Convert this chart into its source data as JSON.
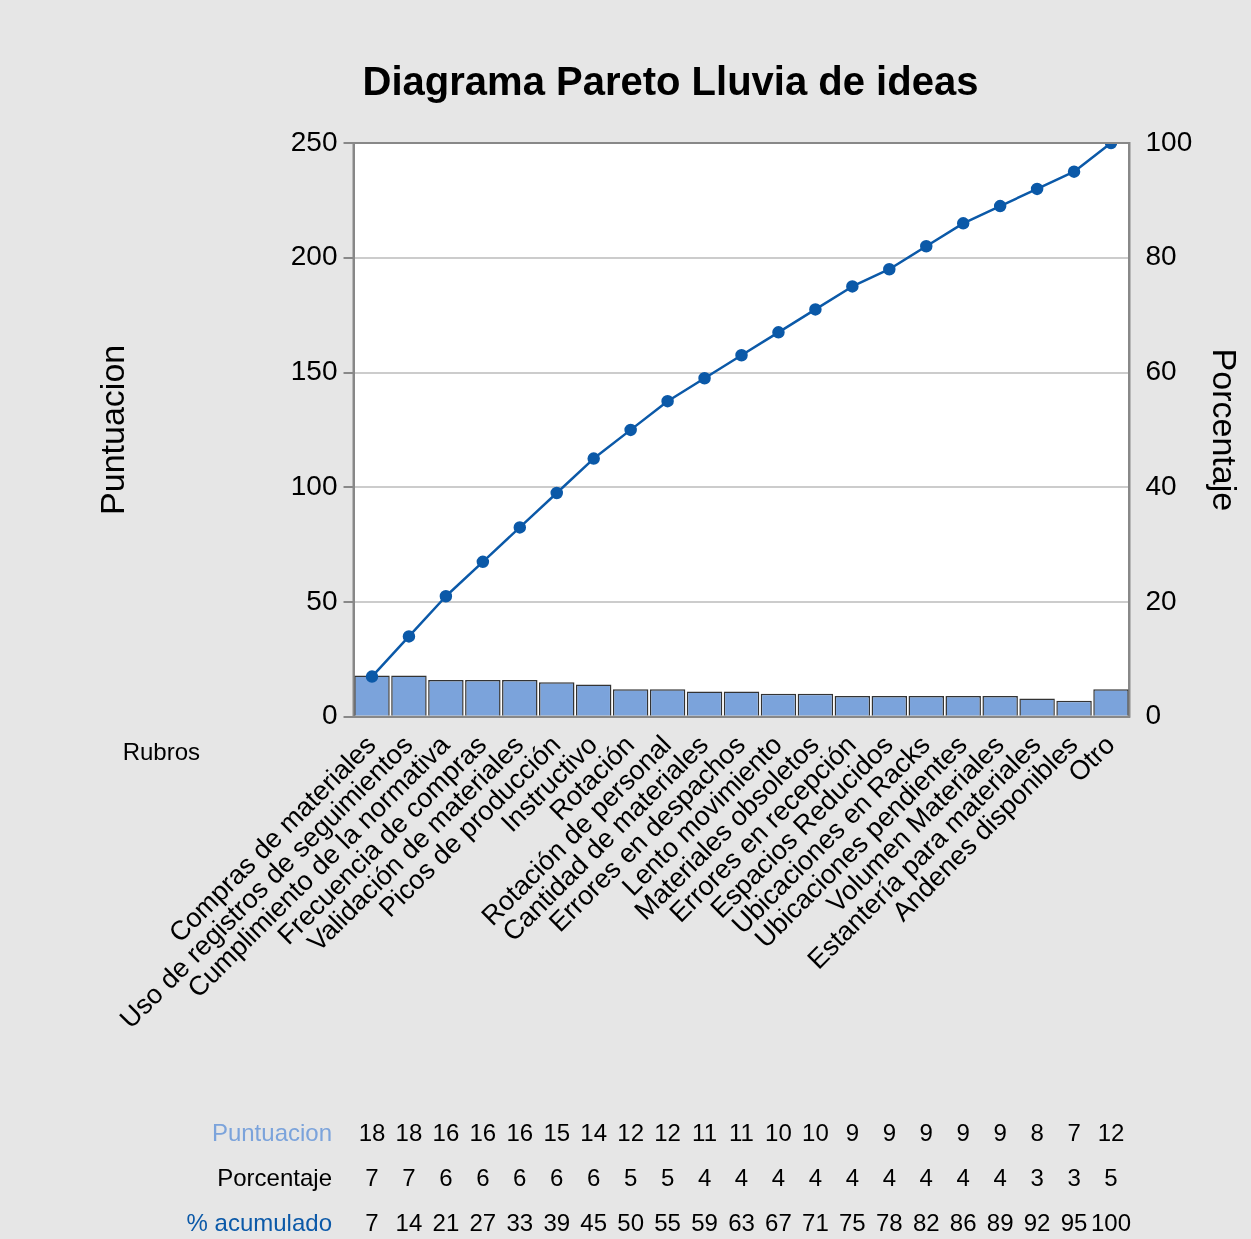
{
  "chart_data": {
    "type": "bar",
    "title": "Diagrama Pareto Lluvia de ideas",
    "xlabel": "Rubros",
    "ylabel": "Puntuacion",
    "y2label": "Porcentaje",
    "categories": [
      "Compras de materiales",
      "Uso de registros de seguimientos",
      "Cumplimiento de la normativa",
      "Frecuencia de compras",
      "Validación de materiales",
      "Picos de producción",
      "Instructivo",
      "Rotación",
      "Rotación de personal",
      "Cantidad de materiales",
      "Errores en despachos",
      "Lento movimiento",
      "Materiales obsoletos",
      "Errores en recepción",
      "Espacios Reducidos",
      "Ubicaciones en Racks",
      "Ubicaciones pendientes",
      "Volumen Materiales",
      "Estantería para materiales",
      "Andenes disponibles",
      "Otro"
    ],
    "series": [
      {
        "name": "Puntuacion",
        "color": "#7ba3db",
        "values": [
          18,
          18,
          16,
          16,
          16,
          15,
          14,
          12,
          12,
          11,
          11,
          10,
          10,
          9,
          9,
          9,
          9,
          9,
          8,
          7,
          12
        ]
      },
      {
        "name": "% acumulado",
        "type": "line",
        "axis": "y2",
        "color": "#0b59a8",
        "marker": "circle",
        "values": [
          7,
          14,
          21,
          27,
          33,
          39,
          45,
          50,
          55,
          59,
          63,
          67,
          71,
          75,
          78,
          82,
          86,
          89,
          92,
          95,
          100
        ]
      }
    ],
    "ylim": [
      0,
      250
    ],
    "yticks": [
      0,
      50,
      100,
      150,
      200,
      250
    ],
    "y2lim": [
      0,
      100
    ],
    "y2ticks": [
      0,
      20,
      40,
      60,
      80,
      100
    ],
    "grid": "y",
    "legend": false,
    "data_labels": true,
    "annotations": [
      "Porcentaje",
      "7",
      "7",
      "6",
      "6",
      "6",
      "6",
      "6",
      "5",
      "5",
      "4",
      "4",
      "4",
      "4",
      "4",
      "4",
      "4",
      "4",
      "4",
      "3",
      "3",
      "5"
    ]
  }
}
